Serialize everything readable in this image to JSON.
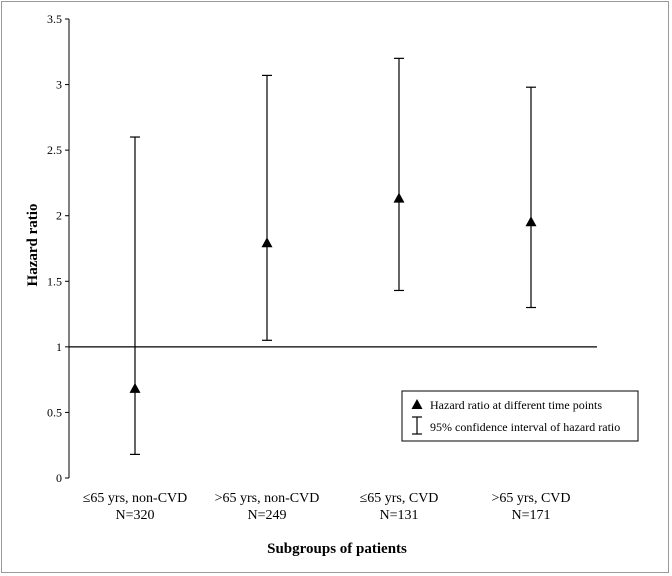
{
  "chart_data": {
    "type": "scatter",
    "xlabel": "Subgroups  of patients",
    "ylabel": "Hazard ratio",
    "ylim": [
      0,
      3.5
    ],
    "yticks": [
      "0",
      "0.5",
      "1",
      "1.5",
      "2",
      "2.5",
      "3",
      "3.5"
    ],
    "categories": [
      {
        "line1": "≤65 yrs, non-CVD",
        "line2": "N=320"
      },
      {
        "line1": ">65 yrs, non-CVD",
        "line2": "N=249"
      },
      {
        "line1": "≤65 yrs, CVD",
        "line2": "N=131"
      },
      {
        "line1": ">65 yrs, CVD",
        "line2": "N=171"
      }
    ],
    "points": [
      {
        "hr": 0.68,
        "lower": 0.18,
        "upper": 2.6
      },
      {
        "hr": 1.79,
        "lower": 1.05,
        "upper": 3.07
      },
      {
        "hr": 2.13,
        "lower": 1.43,
        "upper": 3.2
      },
      {
        "hr": 1.95,
        "lower": 1.3,
        "upper": 2.98
      }
    ],
    "reference_line": 1,
    "legend": {
      "position": "bottom-right",
      "point_label": "Hazard ratio at different time points",
      "ci_label": "95% confidence interval of hazard ratio"
    }
  }
}
